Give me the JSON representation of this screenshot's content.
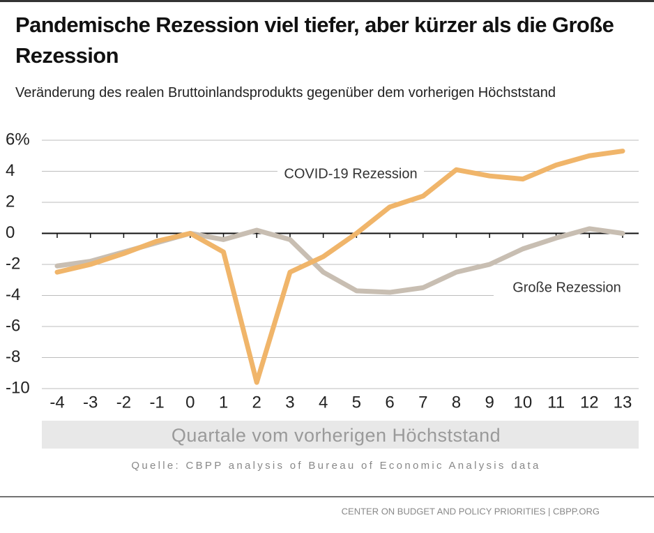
{
  "chart_data": {
    "type": "line",
    "title": "Pandemische Rezession viel tiefer, aber kürzer als die Große Rezession",
    "subtitle": "Veränderung des realen Bruttoinlandsprodukts gegenüber dem vorherigen Höchststand",
    "x_label": "Quartale vom vorherigen Höchststand",
    "source": "Quelle: CBPP analysis of Bureau of Economic Analysis data",
    "footer": "CENTER ON BUDGET AND POLICY PRIORITIES | CBPP.ORG",
    "x": [
      -4,
      -3,
      -2,
      -1,
      0,
      1,
      2,
      3,
      4,
      5,
      6,
      7,
      8,
      9,
      10,
      11,
      12,
      13
    ],
    "xlim": [
      -4,
      13
    ],
    "xticks": [
      -4,
      -3,
      -2,
      -1,
      0,
      1,
      2,
      3,
      4,
      5,
      6,
      7,
      8,
      9,
      10,
      11,
      12,
      13
    ],
    "ylim": [
      -10,
      6
    ],
    "yticks": [
      {
        "value": 6,
        "label": "6%"
      },
      4,
      2,
      0,
      -2,
      -4,
      -6,
      -8,
      -10
    ],
    "grid": true,
    "series": [
      {
        "name": "Große Rezession",
        "color": "#c8beb2",
        "values": [
          -2.1,
          -1.8,
          -1.2,
          -0.6,
          0,
          -0.4,
          0.2,
          -0.4,
          -2.5,
          -3.7,
          -3.8,
          -3.5,
          -2.5,
          -2.0,
          -1.0,
          -0.3,
          0.3,
          0.0
        ]
      },
      {
        "name": "COVID-19 Rezession",
        "color": "#f0b56a",
        "values": [
          -2.5,
          -2.0,
          -1.3,
          -0.5,
          0,
          -1.2,
          -9.6,
          -2.5,
          -1.5,
          0,
          1.7,
          2.4,
          4.1,
          3.7,
          3.5,
          4.4,
          5.0,
          5.3
        ]
      }
    ]
  }
}
